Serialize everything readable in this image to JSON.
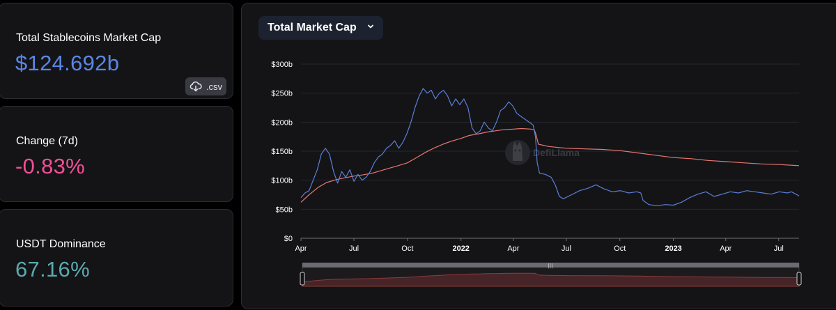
{
  "cards": {
    "mcap": {
      "label": "Total Stablecoins Market Cap",
      "value": "$124.692b",
      "value_color": "#5b86e5"
    },
    "change": {
      "label": "Change (7d)",
      "value": "-0.83%",
      "value_color": "#f24f96"
    },
    "dominance": {
      "label": "USDT Dominance",
      "value": "67.16%",
      "value_color": "#5ba9ad"
    },
    "csv_label": ".csv",
    "csv_icon": "cloud-download-icon"
  },
  "chart": {
    "dropdown_label": "Total Market Cap",
    "dropdown_icon": "chevron-down-icon",
    "watermark": "DefiLlama"
  },
  "chart_data": {
    "type": "line",
    "x_range": [
      "2021-04-01",
      "2023-08-05"
    ],
    "ylim": [
      0,
      300
    ],
    "y_ticks": [
      0,
      50,
      100,
      150,
      200,
      250,
      300
    ],
    "y_tick_labels": [
      "$0",
      "$50b",
      "$100b",
      "$150b",
      "$200b",
      "$250b",
      "$300b"
    ],
    "x_ticks": [
      {
        "date": "2021-04-01",
        "label": "Apr",
        "bold": false
      },
      {
        "date": "2021-07-01",
        "label": "Jul",
        "bold": false
      },
      {
        "date": "2021-10-01",
        "label": "Oct",
        "bold": false
      },
      {
        "date": "2022-01-01",
        "label": "2022",
        "bold": true
      },
      {
        "date": "2022-04-01",
        "label": "Apr",
        "bold": false
      },
      {
        "date": "2022-07-01",
        "label": "Jul",
        "bold": false
      },
      {
        "date": "2022-10-01",
        "label": "Oct",
        "bold": false
      },
      {
        "date": "2023-01-01",
        "label": "2023",
        "bold": true
      },
      {
        "date": "2023-04-01",
        "label": "Apr",
        "bold": false
      },
      {
        "date": "2023-07-01",
        "label": "Jul",
        "bold": false
      }
    ],
    "grid": true,
    "series": [
      {
        "color": "#e8776e",
        "points": [
          [
            "2021-04-01",
            62
          ],
          [
            "2021-04-15",
            75
          ],
          [
            "2021-05-01",
            88
          ],
          [
            "2021-05-15",
            96
          ],
          [
            "2021-06-01",
            101
          ],
          [
            "2021-06-15",
            104
          ],
          [
            "2021-07-01",
            107
          ],
          [
            "2021-07-15",
            109
          ],
          [
            "2021-08-01",
            112
          ],
          [
            "2021-08-15",
            116
          ],
          [
            "2021-09-01",
            121
          ],
          [
            "2021-09-15",
            125
          ],
          [
            "2021-10-01",
            130
          ],
          [
            "2021-10-15",
            138
          ],
          [
            "2021-11-01",
            148
          ],
          [
            "2021-11-15",
            155
          ],
          [
            "2021-12-01",
            162
          ],
          [
            "2021-12-15",
            167
          ],
          [
            "2022-01-01",
            172
          ],
          [
            "2022-01-15",
            177
          ],
          [
            "2022-02-01",
            180
          ],
          [
            "2022-02-15",
            183
          ],
          [
            "2022-03-01",
            185
          ],
          [
            "2022-03-15",
            187
          ],
          [
            "2022-04-01",
            188
          ],
          [
            "2022-04-15",
            189
          ],
          [
            "2022-05-01",
            188
          ],
          [
            "2022-05-07",
            187
          ],
          [
            "2022-05-10",
            178
          ],
          [
            "2022-05-14",
            162
          ],
          [
            "2022-06-01",
            158
          ],
          [
            "2022-07-01",
            155
          ],
          [
            "2022-08-01",
            154
          ],
          [
            "2022-09-01",
            153
          ],
          [
            "2022-10-01",
            151
          ],
          [
            "2022-11-01",
            147
          ],
          [
            "2022-12-01",
            143
          ],
          [
            "2023-01-01",
            139
          ],
          [
            "2023-02-01",
            137
          ],
          [
            "2023-03-01",
            134
          ],
          [
            "2023-04-01",
            132
          ],
          [
            "2023-05-01",
            130
          ],
          [
            "2023-06-01",
            128
          ],
          [
            "2023-07-01",
            127
          ],
          [
            "2023-08-05",
            125
          ]
        ]
      },
      {
        "color": "#5b7fd6",
        "points": [
          [
            "2021-04-01",
            70
          ],
          [
            "2021-04-08",
            78
          ],
          [
            "2021-04-15",
            82
          ],
          [
            "2021-04-22",
            100
          ],
          [
            "2021-04-29",
            118
          ],
          [
            "2021-05-06",
            145
          ],
          [
            "2021-05-13",
            155
          ],
          [
            "2021-05-20",
            145
          ],
          [
            "2021-05-27",
            115
          ],
          [
            "2021-06-03",
            95
          ],
          [
            "2021-06-10",
            115
          ],
          [
            "2021-06-17",
            105
          ],
          [
            "2021-06-24",
            118
          ],
          [
            "2021-07-01",
            98
          ],
          [
            "2021-07-08",
            110
          ],
          [
            "2021-07-15",
            100
          ],
          [
            "2021-07-22",
            105
          ],
          [
            "2021-07-29",
            115
          ],
          [
            "2021-08-05",
            130
          ],
          [
            "2021-08-12",
            140
          ],
          [
            "2021-08-19",
            145
          ],
          [
            "2021-08-26",
            155
          ],
          [
            "2021-09-02",
            160
          ],
          [
            "2021-09-09",
            168
          ],
          [
            "2021-09-16",
            155
          ],
          [
            "2021-09-23",
            165
          ],
          [
            "2021-09-30",
            180
          ],
          [
            "2021-10-07",
            200
          ],
          [
            "2021-10-14",
            225
          ],
          [
            "2021-10-21",
            245
          ],
          [
            "2021-10-28",
            258
          ],
          [
            "2021-11-04",
            250
          ],
          [
            "2021-11-11",
            255
          ],
          [
            "2021-11-18",
            240
          ],
          [
            "2021-11-25",
            250
          ],
          [
            "2021-12-02",
            255
          ],
          [
            "2021-12-09",
            245
          ],
          [
            "2021-12-16",
            228
          ],
          [
            "2021-12-23",
            240
          ],
          [
            "2021-12-30",
            230
          ],
          [
            "2022-01-06",
            240
          ],
          [
            "2022-01-13",
            225
          ],
          [
            "2022-01-20",
            190
          ],
          [
            "2022-01-27",
            180
          ],
          [
            "2022-02-03",
            185
          ],
          [
            "2022-02-10",
            200
          ],
          [
            "2022-02-17",
            190
          ],
          [
            "2022-02-24",
            185
          ],
          [
            "2022-03-03",
            200
          ],
          [
            "2022-03-10",
            220
          ],
          [
            "2022-03-17",
            225
          ],
          [
            "2022-03-24",
            235
          ],
          [
            "2022-03-31",
            228
          ],
          [
            "2022-04-07",
            215
          ],
          [
            "2022-04-14",
            210
          ],
          [
            "2022-04-21",
            205
          ],
          [
            "2022-04-28",
            200
          ],
          [
            "2022-05-05",
            195
          ],
          [
            "2022-05-09",
            175
          ],
          [
            "2022-05-12",
            130
          ],
          [
            "2022-05-16",
            112
          ],
          [
            "2022-05-26",
            110
          ],
          [
            "2022-06-05",
            105
          ],
          [
            "2022-06-12",
            92
          ],
          [
            "2022-06-19",
            72
          ],
          [
            "2022-06-26",
            68
          ],
          [
            "2022-07-10",
            75
          ],
          [
            "2022-07-24",
            82
          ],
          [
            "2022-08-07",
            86
          ],
          [
            "2022-08-21",
            92
          ],
          [
            "2022-09-04",
            85
          ],
          [
            "2022-09-18",
            80
          ],
          [
            "2022-10-02",
            82
          ],
          [
            "2022-10-16",
            78
          ],
          [
            "2022-10-30",
            80
          ],
          [
            "2022-11-06",
            78
          ],
          [
            "2022-11-10",
            65
          ],
          [
            "2022-11-20",
            58
          ],
          [
            "2022-12-04",
            56
          ],
          [
            "2022-12-18",
            58
          ],
          [
            "2023-01-01",
            57
          ],
          [
            "2023-01-15",
            62
          ],
          [
            "2023-01-29",
            70
          ],
          [
            "2023-02-12",
            76
          ],
          [
            "2023-02-26",
            80
          ],
          [
            "2023-03-12",
            72
          ],
          [
            "2023-03-26",
            76
          ],
          [
            "2023-04-09",
            80
          ],
          [
            "2023-04-23",
            78
          ],
          [
            "2023-05-07",
            82
          ],
          [
            "2023-05-21",
            80
          ],
          [
            "2023-06-04",
            78
          ],
          [
            "2023-06-18",
            76
          ],
          [
            "2023-07-02",
            80
          ],
          [
            "2023-07-16",
            78
          ],
          [
            "2023-07-23",
            80
          ],
          [
            "2023-08-05",
            73
          ]
        ]
      }
    ]
  }
}
